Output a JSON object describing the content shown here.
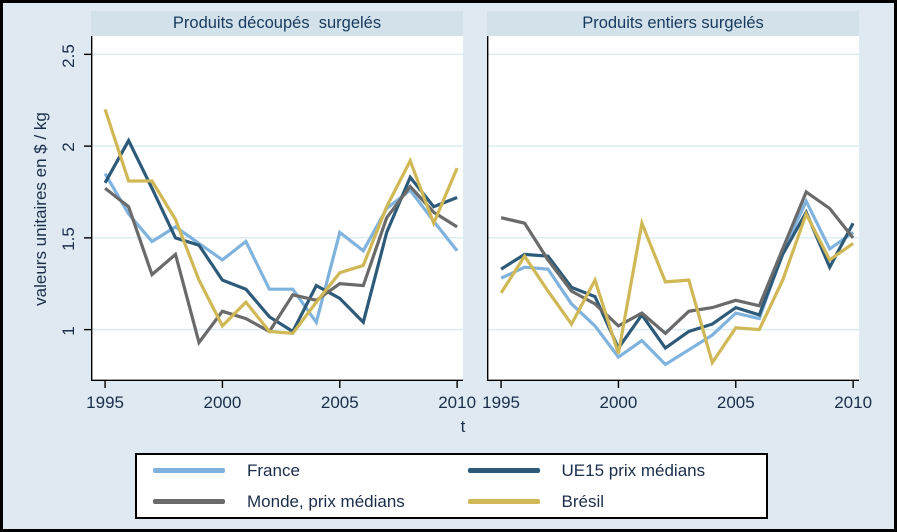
{
  "figure": {
    "y_axis_title": "valeurs unitaires en $ / kg",
    "x_axis_title": "t",
    "y_tick_labels": [
      "2.5",
      "2",
      "1.5",
      "1"
    ],
    "y_tick_values": [
      2.5,
      2.0,
      1.5,
      1.0
    ],
    "x_tick_labels": [
      "1995",
      "2000",
      "2005",
      "2010"
    ],
    "x_tick_values": [
      1995,
      2000,
      2005,
      2010
    ],
    "background_color": "#dfe9f1",
    "plot_background_color": "#ffffff",
    "gridline_color": "#d8ecf2",
    "title_band_color": "#d3e1ea",
    "text_color": "#1a2e4a",
    "axis_color": "#000000"
  },
  "legend": {
    "items": [
      {
        "label": "France",
        "color": "#7fb3de"
      },
      {
        "label": "UE15 prix médians",
        "color": "#2c5a78"
      },
      {
        "label": "Monde, prix médians",
        "color": "#6a6a6a"
      },
      {
        "label": "Brésil",
        "color": "#cfb855"
      }
    ]
  },
  "chart_data": [
    {
      "type": "line",
      "title": "Produits découpés  surgelés",
      "xlabel": "t",
      "ylabel": "valeurs unitaires en $ / kg",
      "x_range": [
        1994.4,
        2010.25
      ],
      "y_range": [
        0.72,
        2.6
      ],
      "grid": true,
      "x": [
        1995,
        1996,
        1997,
        1998,
        1999,
        2000,
        2001,
        2002,
        2003,
        2004,
        2005,
        2006,
        2007,
        2008,
        2009,
        2010
      ],
      "series": [
        {
          "name": "France",
          "color": "#7fb3de",
          "values": [
            1.85,
            1.63,
            1.48,
            1.56,
            1.47,
            1.38,
            1.48,
            1.22,
            1.22,
            1.04,
            1.53,
            1.43,
            1.66,
            1.76,
            1.59,
            1.43
          ]
        },
        {
          "name": "UE15 prix médians",
          "color": "#2c5a78",
          "values": [
            1.8,
            2.03,
            1.77,
            1.5,
            1.46,
            1.27,
            1.22,
            1.07,
            0.99,
            1.24,
            1.17,
            1.04,
            1.53,
            1.83,
            1.67,
            1.72
          ]
        },
        {
          "name": "Monde, prix médians",
          "color": "#6a6a6a",
          "values": [
            1.77,
            1.67,
            1.3,
            1.41,
            0.93,
            1.1,
            1.06,
            0.99,
            1.19,
            1.16,
            1.25,
            1.24,
            1.61,
            1.78,
            1.64,
            1.56
          ]
        },
        {
          "name": "Brésil",
          "color": "#cfb855",
          "values": [
            2.2,
            1.81,
            1.81,
            1.6,
            1.27,
            1.02,
            1.15,
            0.99,
            0.98,
            1.15,
            1.31,
            1.35,
            1.67,
            1.92,
            1.58,
            1.88
          ]
        }
      ]
    },
    {
      "type": "line",
      "title": "Produits entiers surgelés",
      "xlabel": "t",
      "ylabel": "valeurs unitaires en $ / kg",
      "x_range": [
        1994.4,
        2010.25
      ],
      "y_range": [
        0.72,
        2.6
      ],
      "grid": true,
      "x": [
        1995,
        1996,
        1997,
        1998,
        1999,
        2000,
        2001,
        2002,
        2003,
        2004,
        2005,
        2006,
        2007,
        2008,
        2009,
        2010
      ],
      "series": [
        {
          "name": "France",
          "color": "#7fb3de",
          "values": [
            1.28,
            1.34,
            1.33,
            1.14,
            1.02,
            0.85,
            0.94,
            0.81,
            0.89,
            0.97,
            1.09,
            1.06,
            1.42,
            1.7,
            1.44,
            1.53
          ]
        },
        {
          "name": "UE15 prix médians",
          "color": "#2c5a78",
          "values": [
            1.33,
            1.41,
            1.4,
            1.23,
            1.18,
            0.9,
            1.08,
            0.9,
            0.99,
            1.03,
            1.12,
            1.08,
            1.41,
            1.64,
            1.34,
            1.58
          ]
        },
        {
          "name": "Monde, prix médians",
          "color": "#6a6a6a",
          "values": [
            1.61,
            1.58,
            1.38,
            1.21,
            1.14,
            1.02,
            1.09,
            0.98,
            1.1,
            1.12,
            1.16,
            1.13,
            1.44,
            1.75,
            1.66,
            1.5
          ]
        },
        {
          "name": "Brésil",
          "color": "#cfb855",
          "values": [
            1.2,
            1.4,
            1.21,
            1.03,
            1.27,
            0.87,
            1.58,
            1.26,
            1.27,
            0.82,
            1.01,
            1.0,
            1.27,
            1.63,
            1.38,
            1.47
          ]
        }
      ]
    }
  ]
}
